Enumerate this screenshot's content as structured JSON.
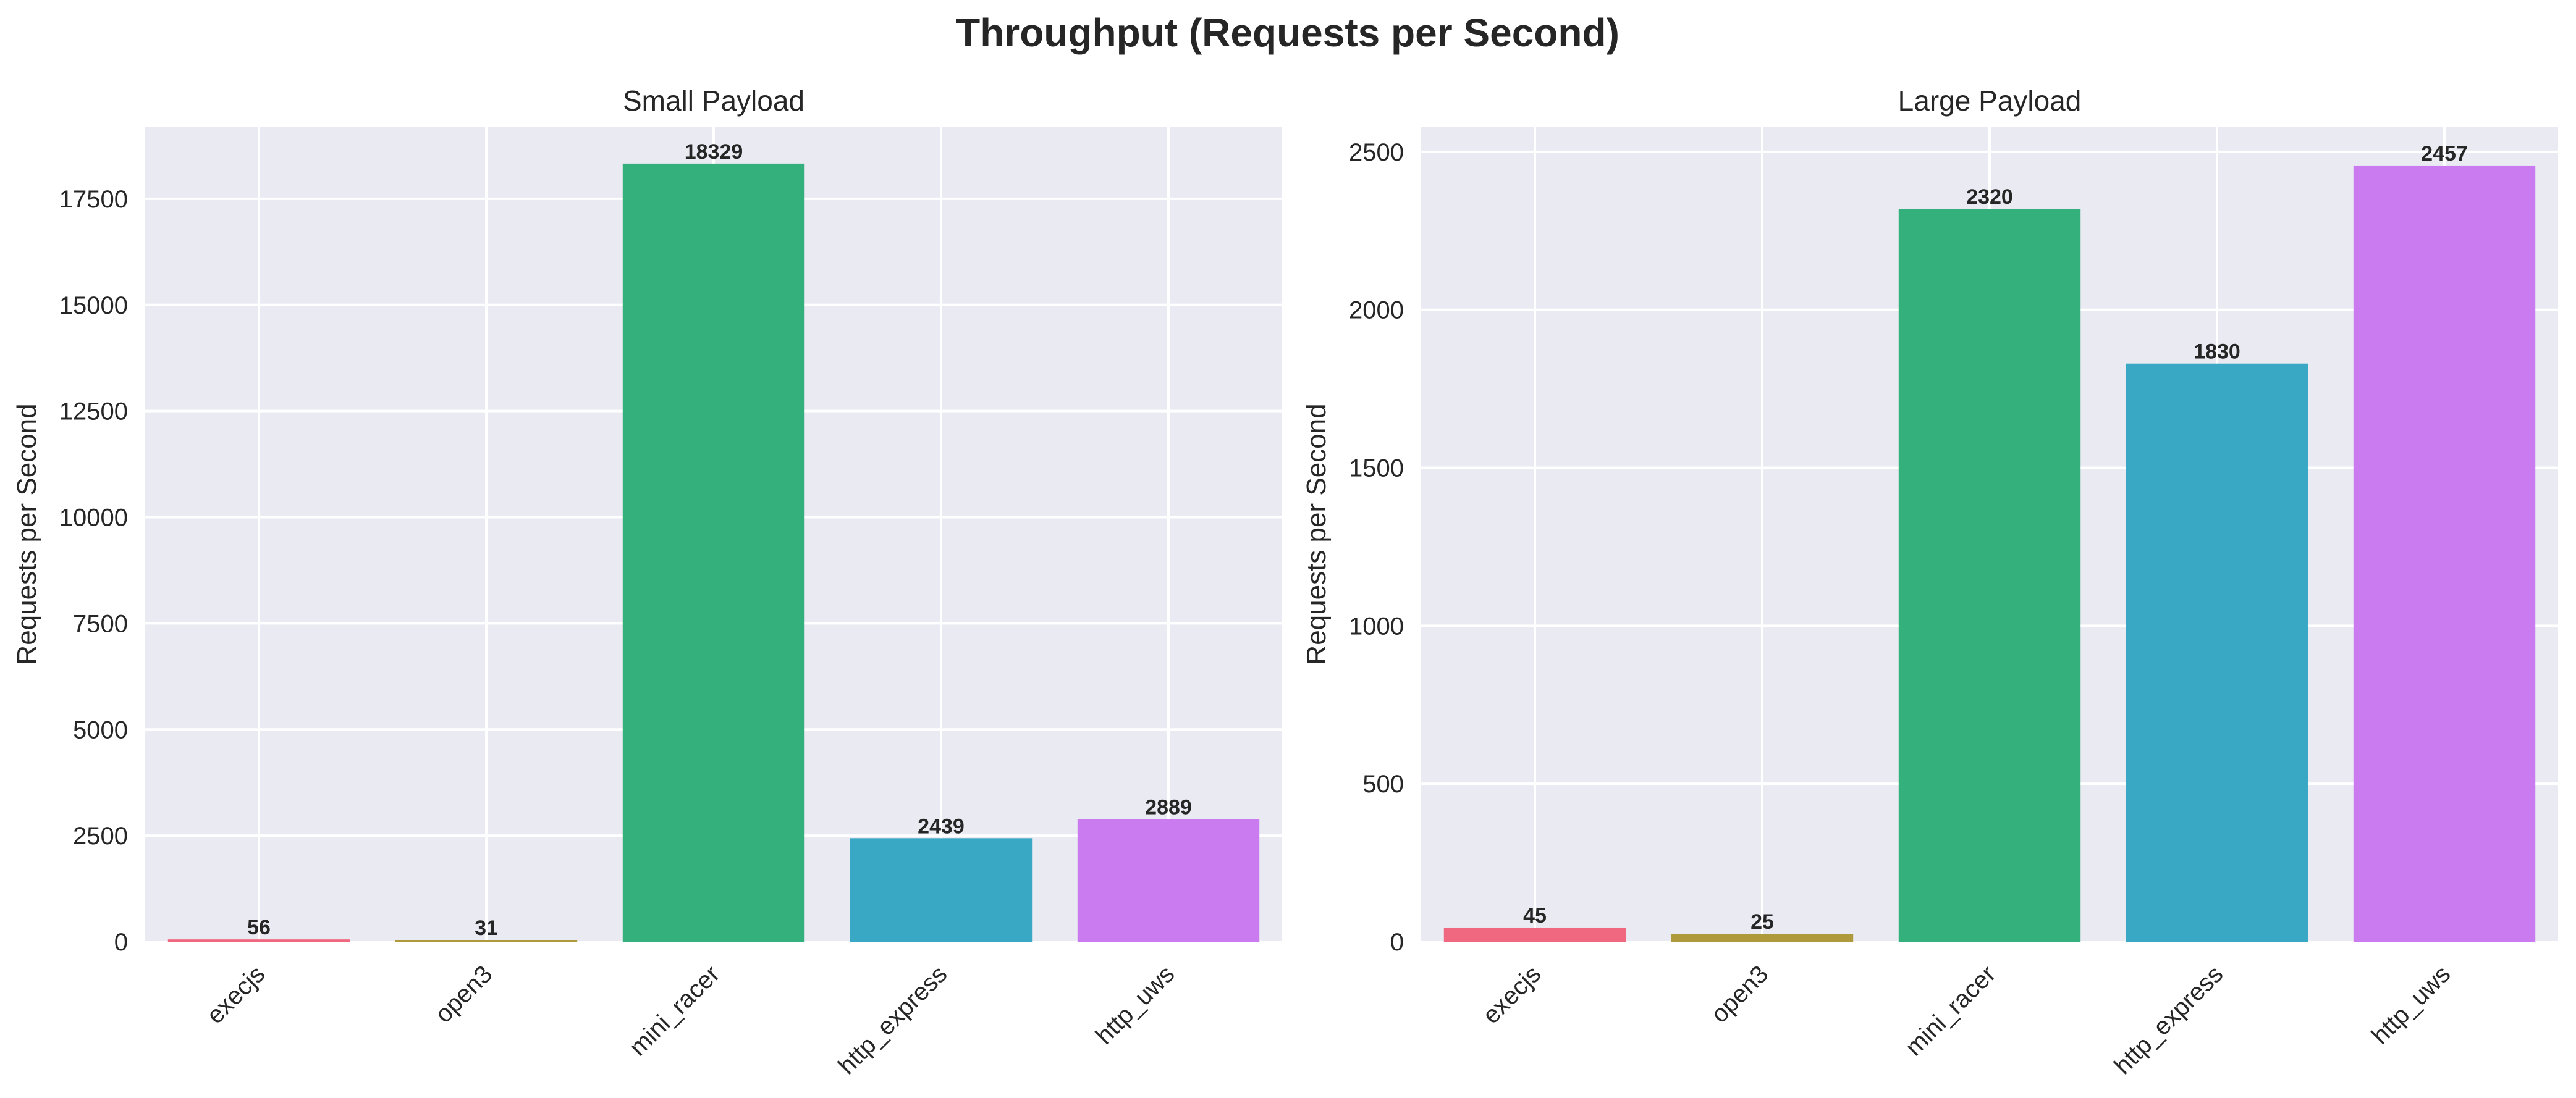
{
  "figure": {
    "title": "Throughput (Requests per Second)"
  },
  "chart_data": [
    {
      "type": "bar",
      "title": "Small Payload",
      "xlabel": "",
      "ylabel": "Requests per Second",
      "categories": [
        "execjs",
        "open3",
        "mini_racer",
        "http_express",
        "http_uws"
      ],
      "values": [
        56,
        31,
        18329,
        2439,
        2889
      ],
      "data_labels": [
        "56",
        "31",
        "18329",
        "2439",
        "2889"
      ],
      "colors": [
        "#f0687f",
        "#ae9a3a",
        "#34b07c",
        "#39a8c4",
        "#c97bef"
      ],
      "ylim": [
        0,
        19200
      ],
      "yticks": [
        0,
        2500,
        5000,
        7500,
        10000,
        12500,
        15000,
        17500
      ],
      "ytick_labels": [
        "0",
        "2500",
        "5000",
        "7500",
        "10000",
        "12500",
        "15000",
        "17500"
      ],
      "grid": true
    },
    {
      "type": "bar",
      "title": "Large Payload",
      "xlabel": "",
      "ylabel": "Requests per Second",
      "categories": [
        "execjs",
        "open3",
        "mini_racer",
        "http_express",
        "http_uws"
      ],
      "values": [
        45,
        25,
        2320,
        1830,
        2457
      ],
      "data_labels": [
        "45",
        "25",
        "2320",
        "1830",
        "2457"
      ],
      "colors": [
        "#f0687f",
        "#ae9a3a",
        "#34b07c",
        "#39a8c4",
        "#c97bef"
      ],
      "ylim": [
        0,
        2580
      ],
      "yticks": [
        0,
        500,
        1000,
        1500,
        2000,
        2500
      ],
      "ytick_labels": [
        "0",
        "500",
        "1000",
        "1500",
        "2000",
        "2500"
      ],
      "grid": true
    }
  ]
}
